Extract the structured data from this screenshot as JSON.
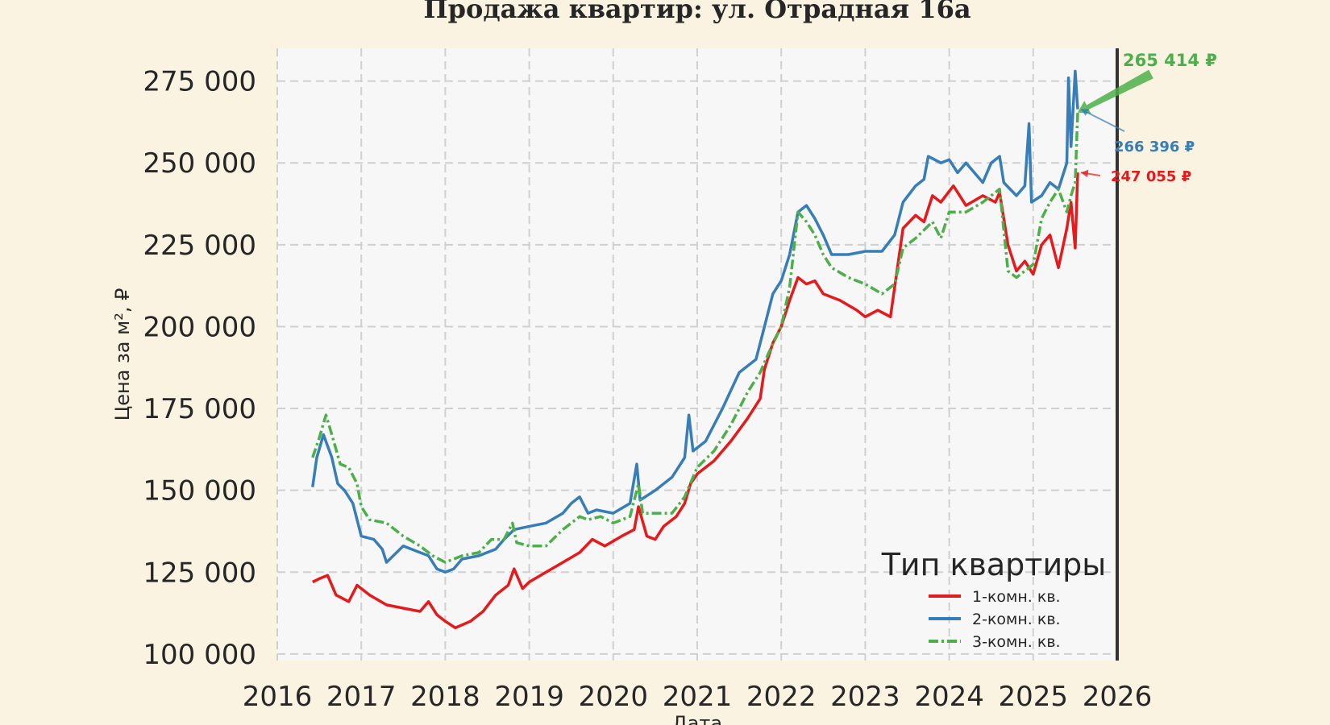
{
  "chart_data": {
    "type": "line",
    "title": "Продажа квартир: ул. Отрадная 16а",
    "xlabel": "Дата",
    "ylabel": "Цена за м², ₽",
    "xlim": [
      2016,
      2026
    ],
    "ylim": [
      98000,
      285000
    ],
    "x_ticks": [
      "2016",
      "2017",
      "2018",
      "2019",
      "2020",
      "2021",
      "2022",
      "2023",
      "2024",
      "2025",
      "2026"
    ],
    "y_ticks": [
      "100 000",
      "125 000",
      "150 000",
      "175 000",
      "200 000",
      "225 000",
      "250 000",
      "275 000"
    ],
    "grid": true,
    "legend": {
      "title": "Тип квартиры",
      "position": "bottom-right"
    },
    "series": [
      {
        "name": "1-комн. кв.",
        "color": "#e41a1c",
        "style": "solid",
        "points": [
          [
            2016.42,
            122000
          ],
          [
            2016.5,
            123000
          ],
          [
            2016.6,
            124000
          ],
          [
            2016.7,
            118000
          ],
          [
            2016.85,
            116000
          ],
          [
            2016.95,
            121000
          ],
          [
            2017.1,
            118000
          ],
          [
            2017.3,
            115000
          ],
          [
            2017.5,
            114000
          ],
          [
            2017.7,
            113000
          ],
          [
            2017.8,
            116000
          ],
          [
            2017.9,
            112000
          ],
          [
            2018.0,
            110000
          ],
          [
            2018.12,
            108000
          ],
          [
            2018.3,
            110000
          ],
          [
            2018.45,
            113000
          ],
          [
            2018.6,
            118000
          ],
          [
            2018.75,
            121000
          ],
          [
            2018.82,
            126000
          ],
          [
            2018.92,
            120000
          ],
          [
            2019.0,
            122000
          ],
          [
            2019.2,
            125000
          ],
          [
            2019.4,
            128000
          ],
          [
            2019.6,
            131000
          ],
          [
            2019.75,
            135000
          ],
          [
            2019.9,
            133000
          ],
          [
            2020.1,
            136000
          ],
          [
            2020.25,
            138000
          ],
          [
            2020.3,
            145000
          ],
          [
            2020.4,
            136000
          ],
          [
            2020.5,
            135000
          ],
          [
            2020.6,
            139000
          ],
          [
            2020.75,
            142000
          ],
          [
            2020.85,
            146000
          ],
          [
            2020.92,
            152000
          ],
          [
            2021.0,
            155000
          ],
          [
            2021.2,
            159000
          ],
          [
            2021.4,
            165000
          ],
          [
            2021.6,
            172000
          ],
          [
            2021.75,
            178000
          ],
          [
            2021.8,
            187000
          ],
          [
            2021.9,
            195000
          ],
          [
            2022.0,
            200000
          ],
          [
            2022.1,
            208000
          ],
          [
            2022.2,
            215000
          ],
          [
            2022.3,
            213000
          ],
          [
            2022.4,
            214000
          ],
          [
            2022.5,
            210000
          ],
          [
            2022.7,
            208000
          ],
          [
            2022.9,
            205000
          ],
          [
            2023.0,
            203000
          ],
          [
            2023.15,
            205000
          ],
          [
            2023.3,
            203000
          ],
          [
            2023.35,
            212000
          ],
          [
            2023.45,
            230000
          ],
          [
            2023.6,
            234000
          ],
          [
            2023.7,
            232000
          ],
          [
            2023.8,
            240000
          ],
          [
            2023.9,
            238000
          ],
          [
            2024.05,
            243000
          ],
          [
            2024.2,
            237000
          ],
          [
            2024.4,
            240000
          ],
          [
            2024.55,
            238000
          ],
          [
            2024.6,
            241000
          ],
          [
            2024.7,
            225000
          ],
          [
            2024.8,
            217000
          ],
          [
            2024.9,
            220000
          ],
          [
            2025.0,
            216000
          ],
          [
            2025.1,
            225000
          ],
          [
            2025.2,
            228000
          ],
          [
            2025.3,
            218000
          ],
          [
            2025.4,
            230000
          ],
          [
            2025.45,
            238000
          ],
          [
            2025.5,
            224000
          ],
          [
            2025.53,
            247055
          ]
        ]
      },
      {
        "name": "2-комн. кв.",
        "color": "#377eb8",
        "style": "solid",
        "points": [
          [
            2016.42,
            151000
          ],
          [
            2016.47,
            160000
          ],
          [
            2016.55,
            167000
          ],
          [
            2016.65,
            160000
          ],
          [
            2016.72,
            152000
          ],
          [
            2016.8,
            150000
          ],
          [
            2016.9,
            146000
          ],
          [
            2017.0,
            136000
          ],
          [
            2017.15,
            135000
          ],
          [
            2017.25,
            132000
          ],
          [
            2017.3,
            128000
          ],
          [
            2017.5,
            133000
          ],
          [
            2017.7,
            131000
          ],
          [
            2017.8,
            130000
          ],
          [
            2017.9,
            126000
          ],
          [
            2018.0,
            125000
          ],
          [
            2018.1,
            126000
          ],
          [
            2018.2,
            129000
          ],
          [
            2018.4,
            130000
          ],
          [
            2018.6,
            132000
          ],
          [
            2018.7,
            135000
          ],
          [
            2018.82,
            138000
          ],
          [
            2019.0,
            139000
          ],
          [
            2019.2,
            140000
          ],
          [
            2019.4,
            143000
          ],
          [
            2019.5,
            146000
          ],
          [
            2019.6,
            148000
          ],
          [
            2019.7,
            143000
          ],
          [
            2019.8,
            144000
          ],
          [
            2020.0,
            143000
          ],
          [
            2020.2,
            146000
          ],
          [
            2020.28,
            158000
          ],
          [
            2020.32,
            147000
          ],
          [
            2020.5,
            150000
          ],
          [
            2020.7,
            154000
          ],
          [
            2020.85,
            160000
          ],
          [
            2020.9,
            173000
          ],
          [
            2020.95,
            162000
          ],
          [
            2021.1,
            165000
          ],
          [
            2021.3,
            175000
          ],
          [
            2021.5,
            186000
          ],
          [
            2021.6,
            188000
          ],
          [
            2021.7,
            190000
          ],
          [
            2021.8,
            200000
          ],
          [
            2021.9,
            210000
          ],
          [
            2022.0,
            214000
          ],
          [
            2022.1,
            222000
          ],
          [
            2022.2,
            235000
          ],
          [
            2022.3,
            237000
          ],
          [
            2022.4,
            233000
          ],
          [
            2022.5,
            228000
          ],
          [
            2022.6,
            222000
          ],
          [
            2022.8,
            222000
          ],
          [
            2023.0,
            223000
          ],
          [
            2023.2,
            223000
          ],
          [
            2023.35,
            228000
          ],
          [
            2023.45,
            238000
          ],
          [
            2023.6,
            243000
          ],
          [
            2023.7,
            245000
          ],
          [
            2023.75,
            252000
          ],
          [
            2023.9,
            250000
          ],
          [
            2024.0,
            251000
          ],
          [
            2024.1,
            247000
          ],
          [
            2024.2,
            250000
          ],
          [
            2024.4,
            244000
          ],
          [
            2024.5,
            250000
          ],
          [
            2024.6,
            252000
          ],
          [
            2024.65,
            244000
          ],
          [
            2024.8,
            240000
          ],
          [
            2024.9,
            243000
          ],
          [
            2024.95,
            262000
          ],
          [
            2024.98,
            238000
          ],
          [
            2025.1,
            240000
          ],
          [
            2025.2,
            244000
          ],
          [
            2025.3,
            242000
          ],
          [
            2025.4,
            250000
          ],
          [
            2025.42,
            276000
          ],
          [
            2025.45,
            255000
          ],
          [
            2025.5,
            278000
          ],
          [
            2025.53,
            266396
          ]
        ]
      },
      {
        "name": "3-комн. кв.",
        "color": "#4daf4a",
        "style": "dashdot",
        "points": [
          [
            2016.42,
            160000
          ],
          [
            2016.5,
            166000
          ],
          [
            2016.58,
            173000
          ],
          [
            2016.65,
            167000
          ],
          [
            2016.75,
            158000
          ],
          [
            2016.85,
            157000
          ],
          [
            2016.95,
            152000
          ],
          [
            2017.0,
            145000
          ],
          [
            2017.1,
            141000
          ],
          [
            2017.3,
            140000
          ],
          [
            2017.5,
            136000
          ],
          [
            2017.7,
            133000
          ],
          [
            2017.85,
            130000
          ],
          [
            2018.0,
            128000
          ],
          [
            2018.2,
            130000
          ],
          [
            2018.4,
            131000
          ],
          [
            2018.55,
            135000
          ],
          [
            2018.7,
            135000
          ],
          [
            2018.8,
            140000
          ],
          [
            2018.85,
            134000
          ],
          [
            2019.0,
            133000
          ],
          [
            2019.2,
            133000
          ],
          [
            2019.4,
            138000
          ],
          [
            2019.6,
            142000
          ],
          [
            2019.7,
            141000
          ],
          [
            2019.85,
            142000
          ],
          [
            2020.0,
            140000
          ],
          [
            2020.2,
            142000
          ],
          [
            2020.3,
            152000
          ],
          [
            2020.35,
            143000
          ],
          [
            2020.5,
            143000
          ],
          [
            2020.7,
            143000
          ],
          [
            2020.85,
            148000
          ],
          [
            2021.0,
            157000
          ],
          [
            2021.2,
            162000
          ],
          [
            2021.4,
            170000
          ],
          [
            2021.6,
            180000
          ],
          [
            2021.75,
            186000
          ],
          [
            2021.85,
            192000
          ],
          [
            2022.0,
            200000
          ],
          [
            2022.1,
            212000
          ],
          [
            2022.2,
            235000
          ],
          [
            2022.3,
            232000
          ],
          [
            2022.4,
            228000
          ],
          [
            2022.5,
            222000
          ],
          [
            2022.6,
            218000
          ],
          [
            2022.8,
            215000
          ],
          [
            2023.0,
            213000
          ],
          [
            2023.2,
            210000
          ],
          [
            2023.35,
            213000
          ],
          [
            2023.45,
            224000
          ],
          [
            2023.6,
            227000
          ],
          [
            2023.8,
            232000
          ],
          [
            2023.9,
            227000
          ],
          [
            2024.0,
            235000
          ],
          [
            2024.2,
            235000
          ],
          [
            2024.4,
            238000
          ],
          [
            2024.6,
            242000
          ],
          [
            2024.7,
            217000
          ],
          [
            2024.8,
            215000
          ],
          [
            2024.9,
            217000
          ],
          [
            2025.0,
            219000
          ],
          [
            2025.1,
            233000
          ],
          [
            2025.2,
            238000
          ],
          [
            2025.3,
            242000
          ],
          [
            2025.4,
            235000
          ],
          [
            2025.45,
            240000
          ],
          [
            2025.5,
            244000
          ],
          [
            2025.53,
            265414
          ]
        ]
      }
    ],
    "annotations": [
      {
        "text": "265 414 ₽",
        "color": "#4daf4a"
      },
      {
        "text": "266 396 ₽",
        "color": "#377eb8"
      },
      {
        "text": "247 055 ₽",
        "color": "#e41a1c"
      }
    ]
  }
}
